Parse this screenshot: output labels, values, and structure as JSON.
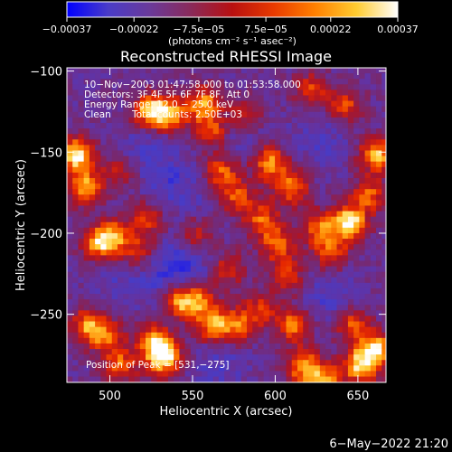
{
  "chart_data": {
    "type": "heatmap",
    "title": "Reconstructed RHESSI Image",
    "xlabel": "Heliocentric X (arcsec)",
    "ylabel": "Heliocentric Y (arcsec)",
    "xlim": [
      474,
      667
    ],
    "ylim": [
      -292,
      -98
    ],
    "x_ticks": [
      500,
      550,
      600,
      650
    ],
    "y_ticks": [
      -100,
      -150,
      -200,
      -250
    ],
    "x_tick_labels": [
      "500",
      "550",
      "600",
      "650"
    ],
    "y_tick_labels": [
      "−100",
      "−150",
      "−200",
      "−250"
    ],
    "colorbar": {
      "min": -0.00037,
      "max": 0.00037,
      "ticks": [
        -0.00037,
        -0.00022,
        -7.5e-05,
        7.5e-05,
        0.00022,
        0.00037
      ],
      "tick_labels": [
        "−0.00037",
        "−0.00022",
        "−7.5e−05",
        "7.5e−05",
        "0.00022",
        "0.00037"
      ],
      "units_label": "(photons cm⁻² s⁻¹ asec⁻²)",
      "colors": [
        "#0000ff",
        "#4a3cc8",
        "#6a3a9a",
        "#8a2a5a",
        "#b81010",
        "#e83a00",
        "#ff8000",
        "#ffcc30",
        "#ffffff"
      ]
    },
    "annotations": {
      "time_range": "10−Nov−2003 01:47:58.000 to 01:53:58.000",
      "detectors": "Detectors: 3F 4F 5F 6F 7F 8F, Att 0",
      "energy_range": "Energy Range: 12.0 − 25.0 keV",
      "clean": "Clean",
      "total_counts": "Total counts: 2.50E+03",
      "peak_position": "Position of Peak = [531,−275]"
    },
    "peak": {
      "x": 531,
      "y": -275
    },
    "hotspots": [
      {
        "x": 478,
        "y": -150,
        "v": 1.0
      },
      {
        "x": 483,
        "y": -170,
        "v": 0.8
      },
      {
        "x": 492,
        "y": -205,
        "v": 0.7
      },
      {
        "x": 500,
        "y": -200,
        "v": 0.6
      },
      {
        "x": 485,
        "y": -255,
        "v": 0.7
      },
      {
        "x": 497,
        "y": -262,
        "v": 0.6
      },
      {
        "x": 505,
        "y": -280,
        "v": 0.6
      },
      {
        "x": 531,
        "y": -275,
        "v": 1.0
      },
      {
        "x": 525,
        "y": -265,
        "v": 0.7
      },
      {
        "x": 540,
        "y": -240,
        "v": 0.75
      },
      {
        "x": 552,
        "y": -240,
        "v": 0.6
      },
      {
        "x": 560,
        "y": -255,
        "v": 0.7
      },
      {
        "x": 575,
        "y": -255,
        "v": 0.65
      },
      {
        "x": 523,
        "y": -123,
        "v": 0.85
      },
      {
        "x": 535,
        "y": -125,
        "v": 0.7
      },
      {
        "x": 555,
        "y": -118,
        "v": 0.75
      },
      {
        "x": 560,
        "y": -135,
        "v": 0.6
      },
      {
        "x": 565,
        "y": -160,
        "v": 0.6
      },
      {
        "x": 520,
        "y": -190,
        "v": 0.55
      },
      {
        "x": 515,
        "y": -210,
        "v": 0.5
      },
      {
        "x": 575,
        "y": -175,
        "v": 0.55
      },
      {
        "x": 590,
        "y": -190,
        "v": 0.6
      },
      {
        "x": 595,
        "y": -155,
        "v": 0.75
      },
      {
        "x": 608,
        "y": -170,
        "v": 0.7
      },
      {
        "x": 600,
        "y": -205,
        "v": 0.65
      },
      {
        "x": 605,
        "y": -225,
        "v": 0.55
      },
      {
        "x": 590,
        "y": -245,
        "v": 0.5
      },
      {
        "x": 610,
        "y": -255,
        "v": 0.7
      },
      {
        "x": 615,
        "y": -280,
        "v": 0.75
      },
      {
        "x": 628,
        "y": -290,
        "v": 0.8
      },
      {
        "x": 625,
        "y": -195,
        "v": 0.6
      },
      {
        "x": 632,
        "y": -210,
        "v": 0.55
      },
      {
        "x": 643,
        "y": -192,
        "v": 1.0
      },
      {
        "x": 655,
        "y": -175,
        "v": 0.6
      },
      {
        "x": 660,
        "y": -150,
        "v": 0.85
      },
      {
        "x": 645,
        "y": -255,
        "v": 0.6
      },
      {
        "x": 650,
        "y": -280,
        "v": 0.9
      },
      {
        "x": 660,
        "y": -270,
        "v": 0.85
      },
      {
        "x": 640,
        "y": -120,
        "v": 0.6
      },
      {
        "x": 620,
        "y": -110,
        "v": 0.5
      },
      {
        "x": 580,
        "y": -125,
        "v": 0.5
      },
      {
        "x": 505,
        "y": -160,
        "v": 0.45
      },
      {
        "x": 550,
        "y": -200,
        "v": 0.45
      },
      {
        "x": 570,
        "y": -220,
        "v": 0.5
      }
    ],
    "cold_regions": [
      {
        "x": 520,
        "y": -150,
        "v": 0.8
      },
      {
        "x": 540,
        "y": -170,
        "v": 0.7
      },
      {
        "x": 545,
        "y": -215,
        "v": 0.8
      },
      {
        "x": 530,
        "y": -225,
        "v": 0.7
      },
      {
        "x": 575,
        "y": -135,
        "v": 0.6
      },
      {
        "x": 625,
        "y": -140,
        "v": 0.6
      },
      {
        "x": 630,
        "y": -240,
        "v": 0.7
      },
      {
        "x": 565,
        "y": -280,
        "v": 0.6
      },
      {
        "x": 505,
        "y": -230,
        "v": 0.5
      }
    ]
  },
  "timestamp": "6−May−2022 21:20"
}
